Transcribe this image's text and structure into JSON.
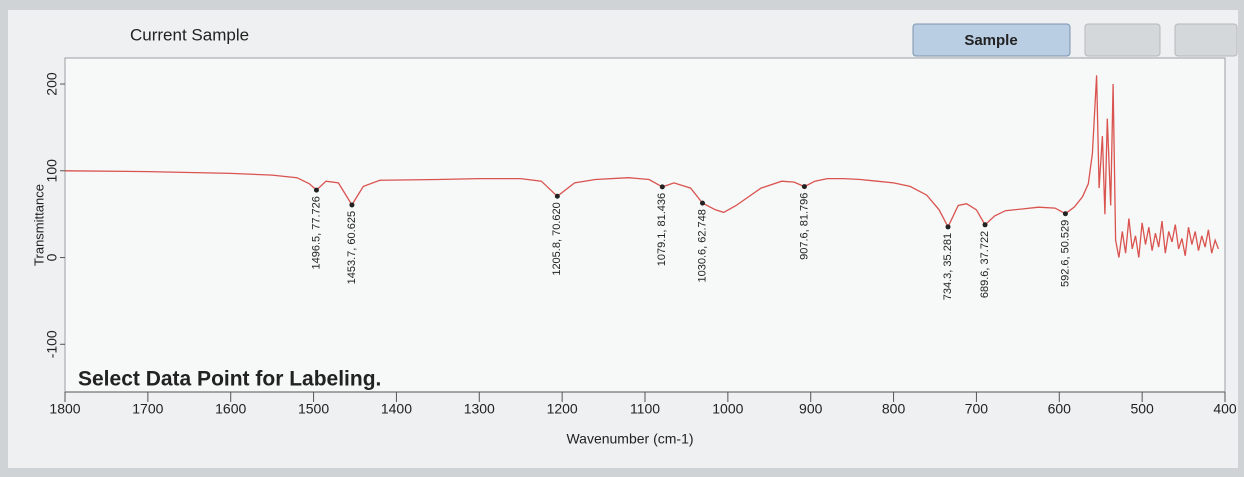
{
  "window": {
    "title": "Current Sample",
    "button": "Sample",
    "status": "Select Data Point for Labeling."
  },
  "chart_data": {
    "type": "line",
    "x_label": "Wavenumber (cm-1)",
    "y_label": "Transmittance",
    "xlim": [
      1800,
      400
    ],
    "ylim": [
      -155,
      230
    ],
    "xticks": [
      1800,
      1700,
      1600,
      1500,
      1400,
      1300,
      1200,
      1100,
      1000,
      900,
      800,
      700,
      600,
      500,
      400
    ],
    "yticks": [
      200,
      100,
      0,
      -100
    ],
    "grid": false,
    "x": [
      1800,
      1700,
      1600,
      1550,
      1520,
      1505,
      1496.5,
      1485,
      1470,
      1453.7,
      1440,
      1420,
      1350,
      1300,
      1250,
      1225,
      1205.8,
      1185,
      1160,
      1120,
      1095,
      1079.1,
      1065,
      1045,
      1030.6,
      1015,
      1005,
      990,
      960,
      935,
      920,
      907.6,
      895,
      880,
      860,
      840,
      820,
      800,
      780,
      760,
      745,
      734.3,
      722,
      712,
      700,
      689.6,
      678,
      665,
      645,
      625,
      605,
      592.6,
      582,
      572,
      565,
      560,
      555,
      552,
      548,
      545,
      542,
      538,
      535,
      532,
      528,
      524,
      520,
      516,
      512,
      508,
      504,
      500,
      496,
      492,
      488,
      484,
      480,
      476,
      472,
      468,
      464,
      460,
      456,
      452,
      448,
      444,
      440,
      436,
      432,
      428,
      424,
      420,
      416,
      412,
      408
    ],
    "series": [
      {
        "color": "#d9534f",
        "values": [
          100,
          99,
          97,
          95,
          92,
          85,
          77.726,
          88,
          86,
          60.625,
          82,
          89,
          90,
          91,
          91,
          88,
          70.62,
          86,
          90,
          92,
          90,
          81.436,
          86,
          80,
          62.748,
          55,
          52,
          60,
          80,
          88,
          87,
          81.796,
          88,
          91,
          91,
          90,
          88,
          86,
          82,
          72,
          55,
          35.281,
          60,
          62,
          55,
          37.722,
          48,
          54,
          56,
          58,
          57,
          50.529,
          58,
          70,
          85,
          120,
          210,
          80,
          140,
          50,
          160,
          60,
          200,
          20,
          0,
          30,
          5,
          45,
          10,
          25,
          0,
          40,
          15,
          35,
          8,
          28,
          12,
          42,
          5,
          30,
          18,
          38,
          10,
          22,
          2,
          35,
          15,
          30,
          8,
          25,
          12,
          32,
          5,
          20,
          10
        ]
      }
    ],
    "annotations": [
      {
        "x": 1496.5,
        "y": 77.726,
        "label": "1496.5, 77.726"
      },
      {
        "x": 1453.7,
        "y": 60.625,
        "label": "1453.7, 60.625"
      },
      {
        "x": 1205.8,
        "y": 70.62,
        "label": "1205.8, 70.620"
      },
      {
        "x": 1079.1,
        "y": 81.436,
        "label": "1079.1, 81.436"
      },
      {
        "x": 1030.6,
        "y": 62.748,
        "label": "1030.6, 62.748"
      },
      {
        "x": 907.6,
        "y": 81.796,
        "label": "907.6, 81.796"
      },
      {
        "x": 734.3,
        "y": 35.281,
        "label": "734.3, 35.281"
      },
      {
        "x": 689.6,
        "y": 37.722,
        "label": "689.6, 37.722"
      },
      {
        "x": 592.6,
        "y": 50.529,
        "label": "592.6, 50.529"
      }
    ]
  }
}
